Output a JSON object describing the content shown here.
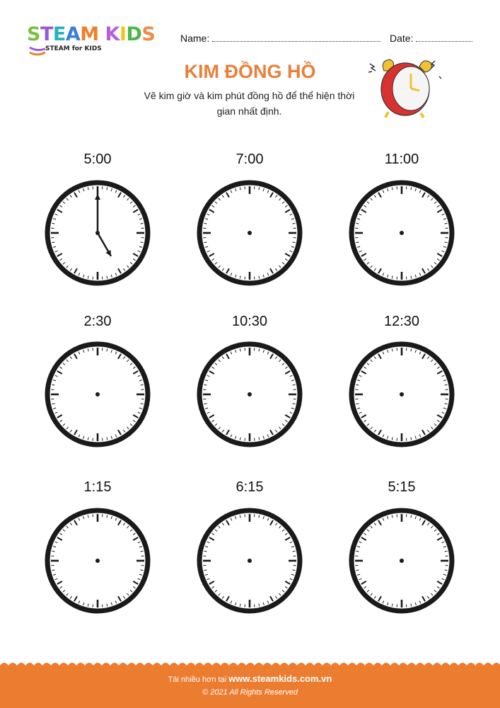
{
  "brand": {
    "name_letters": [
      "S",
      "T",
      "E",
      "A",
      "M",
      " ",
      "K",
      "I",
      "D",
      "S"
    ],
    "letter_colors": [
      "#7ac143",
      "#9b59d0",
      "#2ab0c5",
      "#3b7fd9",
      "#f07f2a",
      "#fff",
      "#b55ee0",
      "#f5c518",
      "#4cb748",
      "#f08a4b"
    ],
    "tagline": "STEAM for KIDS"
  },
  "header": {
    "name_label": "Name:",
    "date_label": "Date:"
  },
  "title": "KIM ĐỒNG HỒ",
  "instructions": "Vẽ kim giờ và kim phút đồng hồ để thể hiện thời gian nhất định.",
  "accent_color": "#ec7d30",
  "clocks": [
    {
      "label": "5:00",
      "hands_drawn": true,
      "hour": 5,
      "minute": 0
    },
    {
      "label": "7:00",
      "hands_drawn": false
    },
    {
      "label": "11:00",
      "hands_drawn": false
    },
    {
      "label": "2:30",
      "hands_drawn": false
    },
    {
      "label": "10:30",
      "hands_drawn": false
    },
    {
      "label": "12:30",
      "hands_drawn": false
    },
    {
      "label": "1:15",
      "hands_drawn": false
    },
    {
      "label": "6:15",
      "hands_drawn": false
    },
    {
      "label": "5:15",
      "hands_drawn": false
    }
  ],
  "footer": {
    "more_text": "Tải nhiều hơn tại",
    "website": "www.steamkids.com.vn",
    "copyright": "© 2021 All Rights Reserved"
  }
}
